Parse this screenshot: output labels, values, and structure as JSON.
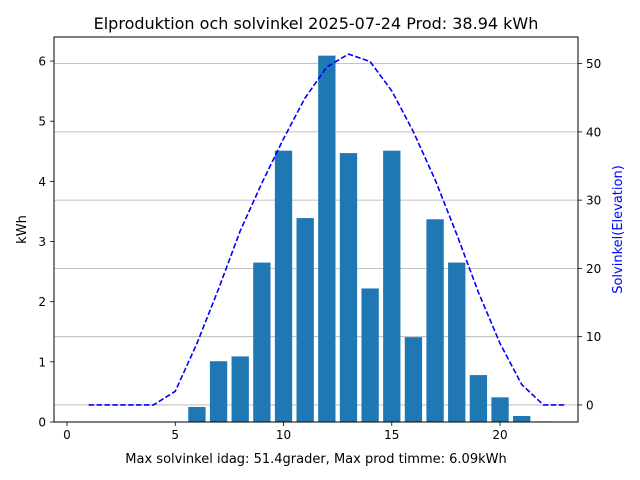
{
  "chart_data": {
    "type": "bar",
    "title": "Elproduktion och solvinkel 2025-07-24 Prod: 38.94 kWh",
    "xlabel": "Max solvinkel idag: 51.4grader, Max prod timme: 6.09kWh",
    "ylabel": "kWh",
    "ylabel_right": "Solvinkel(Elevation)",
    "xlim": [
      -0.6,
      23.6
    ],
    "ylim": [
      0,
      6.4
    ],
    "ylim_right": [
      -2.5,
      53.9
    ],
    "x_ticks": [
      0,
      5,
      10,
      15,
      20
    ],
    "y_ticks": [
      0,
      1,
      2,
      3,
      4,
      5,
      6
    ],
    "y_ticks_right": [
      0,
      10,
      20,
      30,
      40,
      50
    ],
    "grid": "horizontal lines at right-axis ticks",
    "series": [
      {
        "axis": "left",
        "type": "bar",
        "color": "#1f77b4",
        "x": [
          0,
          1,
          2,
          3,
          4,
          5,
          6,
          7,
          8,
          9,
          10,
          11,
          12,
          13,
          14,
          15,
          16,
          17,
          18,
          19,
          20,
          21,
          22,
          23
        ],
        "values": [
          0,
          0,
          0,
          0,
          0,
          0,
          0.25,
          1.01,
          1.09,
          2.65,
          4.51,
          3.39,
          6.09,
          4.47,
          2.22,
          4.51,
          1.41,
          3.37,
          2.65,
          0.78,
          0.41,
          0.1,
          0.01,
          0
        ]
      },
      {
        "axis": "right",
        "type": "line",
        "style": "dashed",
        "color": "#0000ff",
        "x": [
          1,
          2,
          3,
          4,
          5,
          6,
          7,
          8,
          9,
          10,
          11,
          12,
          13,
          14,
          15,
          16,
          17,
          18,
          19,
          20,
          21,
          22,
          23
        ],
        "values": [
          0,
          0,
          0,
          0,
          2,
          9,
          17,
          25.5,
          32.5,
          39,
          45,
          49.5,
          51.4,
          50.3,
          46,
          40,
          33,
          25,
          16.5,
          9,
          3,
          0,
          0
        ]
      }
    ]
  }
}
